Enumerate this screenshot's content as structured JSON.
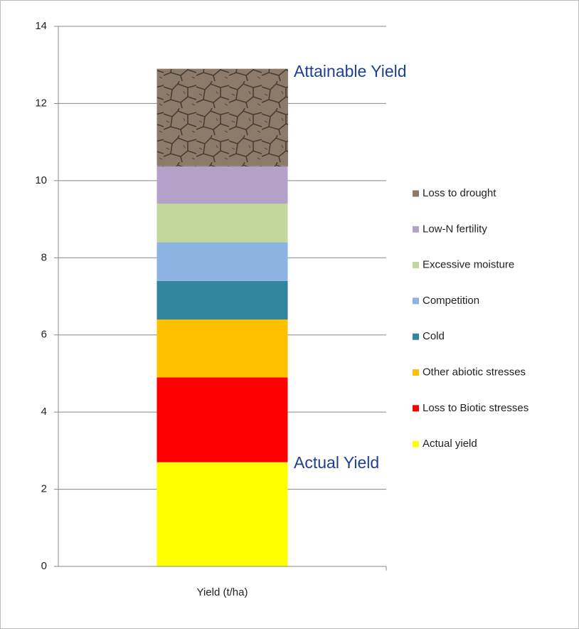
{
  "chart_data": {
    "type": "stacked_bar",
    "categories": [
      "Yield (t/ha)"
    ],
    "series": [
      {
        "name": "Actual yield",
        "color": "#ffff00",
        "values": [
          2.7
        ]
      },
      {
        "name": "Loss to Biotic stresses",
        "color": "#ff0000",
        "values": [
          2.2
        ]
      },
      {
        "name": "Other abiotic stresses",
        "color": "#ffc000",
        "values": [
          1.5
        ]
      },
      {
        "name": "Cold",
        "color": "#31859c",
        "values": [
          1.0
        ]
      },
      {
        "name": "Competition",
        "color": "#8db3e2",
        "values": [
          1.0
        ]
      },
      {
        "name": "Excessive moisture",
        "color": "#c3d69b",
        "values": [
          1.0
        ]
      },
      {
        "name": "Low-N fertility",
        "color": "#b3a2c7",
        "values": [
          1.0
        ]
      },
      {
        "name": "Loss to drought",
        "color": "#8c7b6b",
        "values": [
          2.5
        ]
      }
    ],
    "ylim": [
      0,
      14
    ],
    "yticks": [
      0,
      2,
      4,
      6,
      8,
      10,
      12,
      14
    ],
    "grid": true,
    "legend": "right",
    "annotations": [
      "Attainable Yield",
      "Actual Yield"
    ]
  }
}
